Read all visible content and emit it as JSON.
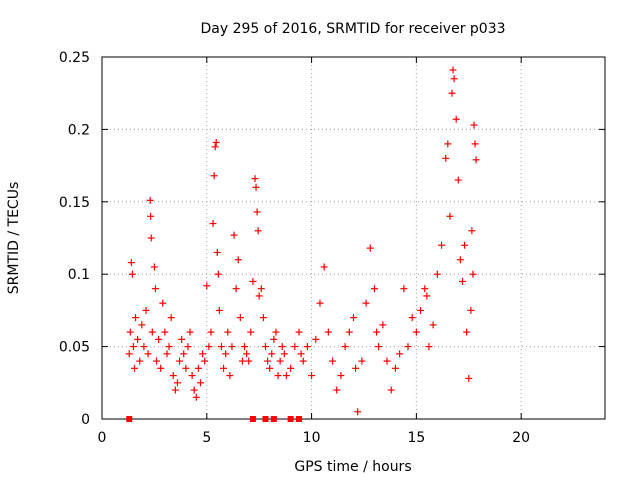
{
  "chart_data": {
    "type": "scatter",
    "title": "Day 295 of 2016, SRMTID for receiver p033",
    "xlabel": "GPS time / hours",
    "ylabel": "SRMTID / TECUs",
    "xlim": [
      0,
      24
    ],
    "ylim": [
      0,
      0.25
    ],
    "x_ticks": [
      0,
      5,
      10,
      15,
      20
    ],
    "y_ticks": [
      0,
      0.05,
      0.1,
      0.15,
      0.2,
      0.25
    ],
    "x_tick_labels": [
      "0",
      "5",
      "10",
      "15",
      "20"
    ],
    "y_tick_labels": [
      "0",
      "0.05",
      "0.1",
      "0.15",
      "0.2",
      "0.25"
    ],
    "grid": true,
    "marker": "+",
    "color": "#ff0000",
    "series": [
      {
        "name": "SRMTID",
        "points": [
          [
            1.3,
            0.045
          ],
          [
            1.35,
            0.06
          ],
          [
            1.4,
            0.108
          ],
          [
            1.45,
            0.1
          ],
          [
            1.5,
            0.05
          ],
          [
            1.55,
            0.035
          ],
          [
            1.6,
            0.07
          ],
          [
            1.7,
            0.055
          ],
          [
            1.8,
            0.04
          ],
          [
            1.9,
            0.065
          ],
          [
            2.0,
            0.05
          ],
          [
            2.1,
            0.075
          ],
          [
            2.2,
            0.045
          ],
          [
            2.3,
            0.151
          ],
          [
            2.32,
            0.14
          ],
          [
            2.35,
            0.125
          ],
          [
            2.4,
            0.06
          ],
          [
            2.5,
            0.105
          ],
          [
            2.55,
            0.09
          ],
          [
            2.6,
            0.04
          ],
          [
            2.7,
            0.055
          ],
          [
            2.8,
            0.035
          ],
          [
            2.9,
            0.08
          ],
          [
            3.0,
            0.06
          ],
          [
            3.1,
            0.045
          ],
          [
            3.2,
            0.05
          ],
          [
            3.3,
            0.07
          ],
          [
            3.4,
            0.03
          ],
          [
            3.5,
            0.02
          ],
          [
            3.6,
            0.025
          ],
          [
            3.7,
            0.04
          ],
          [
            3.8,
            0.055
          ],
          [
            3.9,
            0.045
          ],
          [
            4.0,
            0.035
          ],
          [
            4.1,
            0.05
          ],
          [
            4.2,
            0.06
          ],
          [
            4.3,
            0.03
          ],
          [
            4.4,
            0.02
          ],
          [
            4.5,
            0.015
          ],
          [
            4.6,
            0.035
          ],
          [
            4.7,
            0.025
          ],
          [
            4.8,
            0.045
          ],
          [
            4.9,
            0.04
          ],
          [
            5.0,
            0.092
          ],
          [
            5.1,
            0.05
          ],
          [
            5.2,
            0.06
          ],
          [
            5.3,
            0.135
          ],
          [
            5.35,
            0.168
          ],
          [
            5.4,
            0.188
          ],
          [
            5.45,
            0.191
          ],
          [
            5.5,
            0.115
          ],
          [
            5.55,
            0.1
          ],
          [
            5.6,
            0.075
          ],
          [
            5.7,
            0.05
          ],
          [
            5.8,
            0.035
          ],
          [
            5.9,
            0.045
          ],
          [
            6.0,
            0.06
          ],
          [
            6.1,
            0.03
          ],
          [
            6.2,
            0.05
          ],
          [
            6.3,
            0.127
          ],
          [
            6.4,
            0.09
          ],
          [
            6.5,
            0.11
          ],
          [
            6.6,
            0.07
          ],
          [
            6.7,
            0.04
          ],
          [
            6.8,
            0.05
          ],
          [
            6.9,
            0.045
          ],
          [
            7.0,
            0.04
          ],
          [
            7.1,
            0.06
          ],
          [
            7.2,
            0.095
          ],
          [
            7.3,
            0.166
          ],
          [
            7.35,
            0.16
          ],
          [
            7.4,
            0.143
          ],
          [
            7.45,
            0.13
          ],
          [
            7.5,
            0.085
          ],
          [
            7.6,
            0.09
          ],
          [
            7.7,
            0.07
          ],
          [
            7.8,
            0.05
          ],
          [
            7.9,
            0.04
          ],
          [
            8.0,
            0.035
          ],
          [
            8.1,
            0.045
          ],
          [
            8.2,
            0.055
          ],
          [
            8.3,
            0.06
          ],
          [
            8.4,
            0.03
          ],
          [
            8.5,
            0.04
          ],
          [
            8.6,
            0.05
          ],
          [
            8.7,
            0.045
          ],
          [
            8.8,
            0.03
          ],
          [
            9.0,
            0.035
          ],
          [
            9.2,
            0.05
          ],
          [
            9.4,
            0.06
          ],
          [
            9.5,
            0.045
          ],
          [
            9.6,
            0.04
          ],
          [
            9.8,
            0.05
          ],
          [
            10.0,
            0.03
          ],
          [
            10.2,
            0.055
          ],
          [
            10.4,
            0.08
          ],
          [
            10.6,
            0.105
          ],
          [
            10.8,
            0.06
          ],
          [
            11.0,
            0.04
          ],
          [
            11.2,
            0.02
          ],
          [
            11.4,
            0.03
          ],
          [
            11.6,
            0.05
          ],
          [
            11.8,
            0.06
          ],
          [
            12.0,
            0.07
          ],
          [
            12.1,
            0.035
          ],
          [
            12.2,
            0.005
          ],
          [
            12.4,
            0.04
          ],
          [
            12.6,
            0.08
          ],
          [
            12.8,
            0.118
          ],
          [
            13.0,
            0.09
          ],
          [
            13.1,
            0.06
          ],
          [
            13.2,
            0.05
          ],
          [
            13.4,
            0.065
          ],
          [
            13.6,
            0.04
          ],
          [
            13.8,
            0.02
          ],
          [
            14.0,
            0.035
          ],
          [
            14.2,
            0.045
          ],
          [
            14.4,
            0.09
          ],
          [
            14.6,
            0.05
          ],
          [
            14.8,
            0.07
          ],
          [
            15.0,
            0.06
          ],
          [
            15.2,
            0.075
          ],
          [
            15.4,
            0.09
          ],
          [
            15.5,
            0.085
          ],
          [
            15.6,
            0.05
          ],
          [
            15.8,
            0.065
          ],
          [
            16.0,
            0.1
          ],
          [
            16.2,
            0.12
          ],
          [
            16.4,
            0.18
          ],
          [
            16.5,
            0.19
          ],
          [
            16.6,
            0.14
          ],
          [
            16.7,
            0.225
          ],
          [
            16.75,
            0.241
          ],
          [
            16.8,
            0.235
          ],
          [
            16.9,
            0.207
          ],
          [
            17.0,
            0.165
          ],
          [
            17.1,
            0.11
          ],
          [
            17.2,
            0.095
          ],
          [
            17.3,
            0.12
          ],
          [
            17.4,
            0.06
          ],
          [
            17.5,
            0.028
          ],
          [
            17.6,
            0.075
          ],
          [
            17.65,
            0.13
          ],
          [
            17.7,
            0.1
          ],
          [
            17.75,
            0.203
          ],
          [
            17.8,
            0.19
          ],
          [
            17.85,
            0.179
          ]
        ]
      }
    ],
    "zero_markers_x": [
      1.3,
      7.2,
      7.8,
      8.2,
      9.0,
      9.4
    ]
  }
}
